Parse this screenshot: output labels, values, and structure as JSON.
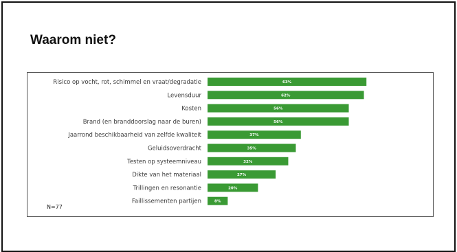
{
  "slide": {
    "title": "Waarom niet?",
    "sample_note": "N=77"
  },
  "colors": {
    "bar": "#3a9a34",
    "bar_label": "#ffffff",
    "frame_border": "#555555"
  },
  "chart_data": {
    "type": "bar",
    "orientation": "horizontal",
    "categories": [
      "Risico op vocht, rot, schimmel en vraat/degradatie",
      "Levensduur",
      "Kosten",
      "Brand (en branddoorslag naar de buren)",
      "Jaarrond beschikbaarheid van zelfde kwaliteit",
      "Geluidsoverdracht",
      "Testen op systeemniveau",
      "Dikte van het materiaal",
      "Trillingen en resonantie",
      "Faillissementen partijen"
    ],
    "values": [
      63,
      62,
      56,
      56,
      37,
      35,
      32,
      27,
      20,
      8
    ],
    "value_labels": [
      "63%",
      "62%",
      "56%",
      "56%",
      "37%",
      "35%",
      "32%",
      "27%",
      "20%",
      "8%"
    ],
    "xlim": [
      0,
      100
    ],
    "grid": false,
    "legend": "none"
  }
}
